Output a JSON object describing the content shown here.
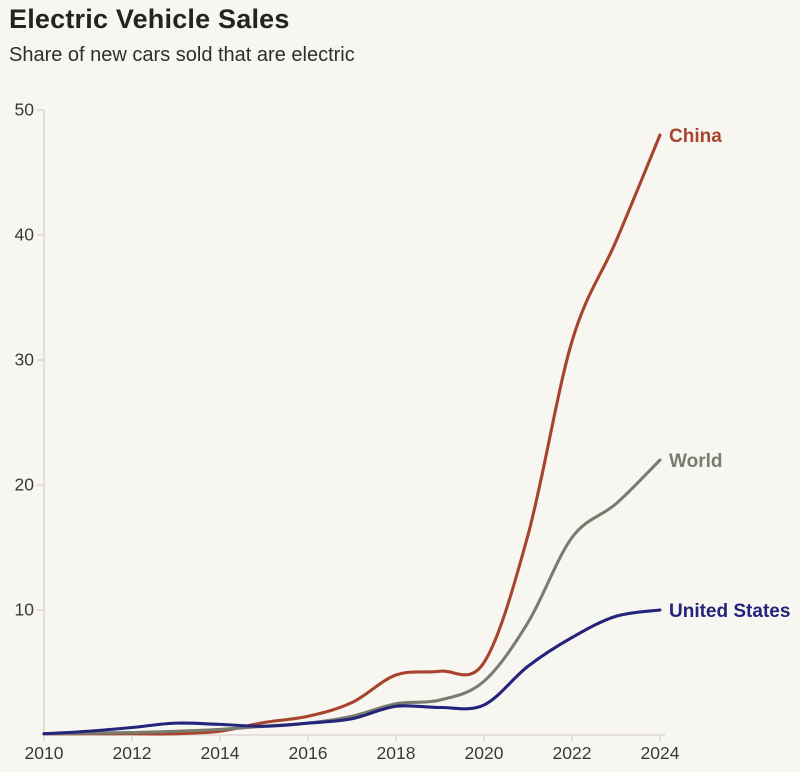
{
  "colors": {
    "background": "#f8f6f0",
    "axis_line": "#ddd9d1",
    "tick_text": "#3a3a3a",
    "title_text": "#232323"
  },
  "chart_data": {
    "type": "line",
    "title": "Electric Vehicle Sales",
    "subtitle": "Share of new cars sold that are electric",
    "xlabel": "",
    "ylabel": "",
    "x": [
      2010,
      2011,
      2012,
      2013,
      2014,
      2015,
      2016,
      2017,
      2018,
      2019,
      2020,
      2021,
      2022,
      2023,
      2024
    ],
    "series": [
      {
        "name": "China",
        "color": "#a8432e",
        "values": [
          0.1,
          0.1,
          0.1,
          0.1,
          0.3,
          1.0,
          1.5,
          2.6,
          4.8,
          5.1,
          5.8,
          16,
          31.5,
          39.5,
          48
        ]
      },
      {
        "name": "World",
        "color": "#7b7c70",
        "values": [
          0.1,
          0.15,
          0.2,
          0.3,
          0.45,
          0.7,
          0.95,
          1.5,
          2.5,
          2.8,
          4.3,
          9,
          15.8,
          18.5,
          22
        ]
      },
      {
        "name": "United States",
        "color": "#24247b",
        "values": [
          0.1,
          0.3,
          0.6,
          0.95,
          0.85,
          0.7,
          0.95,
          1.3,
          2.3,
          2.2,
          2.4,
          5.5,
          7.8,
          9.5,
          10
        ]
      }
    ],
    "xlim": [
      2010,
      2024
    ],
    "ylim": [
      0,
      50
    ],
    "xticks": [
      2010,
      2012,
      2014,
      2016,
      2018,
      2020,
      2022,
      2024
    ],
    "yticks": [
      10,
      20,
      30,
      40,
      50
    ],
    "grid": false,
    "legend_position": "end-of-line"
  }
}
